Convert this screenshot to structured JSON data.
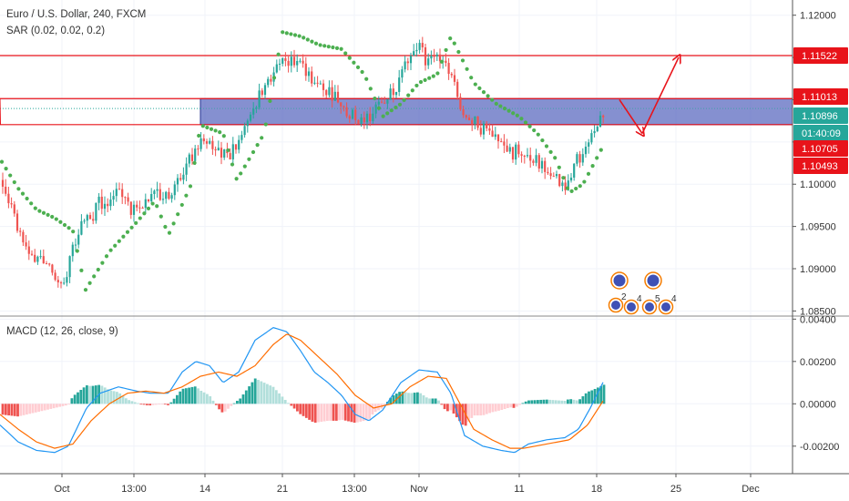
{
  "chart_data": {
    "type": "candlestick",
    "price_panel": {
      "title": "Euro / U.S. Dollar, 240, FXCM",
      "indicator": "SAR (0.02, 0.02, 0.2)",
      "yticks": [
        "1.12000",
        "1.11500",
        "1.11000",
        "1.10500",
        "1.10000",
        "1.09500",
        "1.09000",
        "1.08500"
      ],
      "ylim": [
        1.0845,
        1.1218
      ],
      "price_tags": [
        {
          "value": 1.11522,
          "label": "1.11522",
          "color": "#e8131a"
        },
        {
          "value": 1.11013,
          "label": "1.11013",
          "color": "#e8131a"
        },
        {
          "value": 1.10896,
          "label": "1.10896",
          "color": "#26a69a"
        },
        {
          "value": 1.1084,
          "label": "01:40:09",
          "color": "#26a69a"
        },
        {
          "value": 1.10705,
          "label": "1.10705",
          "color": "#e8131a"
        },
        {
          "value": 1.10493,
          "label": "1.10493",
          "color": "#e8131a"
        }
      ],
      "levels": [
        1.11522,
        1.11013,
        1.10705
      ],
      "zone": [
        1.10705,
        1.11013
      ],
      "colors": {
        "up": "#26a69a",
        "down": "#ef5350",
        "sar": "#4caf50",
        "level": "#e8131a",
        "zone": "#5c6bc0"
      },
      "close_path": [
        [
          0,
          1.1005
        ],
        [
          10,
          1.0975
        ],
        [
          20,
          1.0945
        ],
        [
          30,
          1.0925
        ],
        [
          40,
          1.0905
        ],
        [
          50,
          1.0915
        ],
        [
          60,
          1.0895
        ],
        [
          70,
          1.0885
        ],
        [
          80,
          1.0925
        ],
        [
          90,
          1.095
        ],
        [
          100,
          1.096
        ],
        [
          110,
          1.098
        ],
        [
          120,
          1.0975
        ],
        [
          130,
          1.099
        ],
        [
          140,
          1.0975
        ],
        [
          150,
          1.0965
        ],
        [
          160,
          1.0975
        ],
        [
          170,
          1.099
        ],
        [
          180,
          1.0985
        ],
        [
          190,
          1.0995
        ],
        [
          200,
          1.1015
        ],
        [
          210,
          1.103
        ],
        [
          220,
          1.1055
        ],
        [
          230,
          1.1045
        ],
        [
          240,
          1.104
        ],
        [
          250,
          1.1035
        ],
        [
          260,
          1.1045
        ],
        [
          270,
          1.107
        ],
        [
          280,
          1.1095
        ],
        [
          290,
          1.1115
        ],
        [
          300,
          1.1135
        ],
        [
          310,
          1.115
        ],
        [
          320,
          1.1145
        ],
        [
          330,
          1.114
        ],
        [
          340,
          1.1125
        ],
        [
          350,
          1.1115
        ],
        [
          360,
          1.111
        ],
        [
          370,
          1.11
        ],
        [
          380,
          1.109
        ],
        [
          390,
          1.1075
        ],
        [
          400,
          1.108
        ],
        [
          410,
          1.1085
        ],
        [
          420,
          1.1095
        ],
        [
          430,
          1.111
        ],
        [
          440,
          1.1125
        ],
        [
          450,
          1.115
        ],
        [
          460,
          1.116
        ],
        [
          470,
          1.1145
        ],
        [
          480,
          1.115
        ],
        [
          490,
          1.1135
        ],
        [
          500,
          1.111
        ],
        [
          510,
          1.108
        ],
        [
          520,
          1.1075
        ],
        [
          530,
          1.1065
        ],
        [
          540,
          1.106
        ],
        [
          550,
          1.105
        ],
        [
          560,
          1.1035
        ],
        [
          570,
          1.104
        ],
        [
          580,
          1.103
        ],
        [
          590,
          1.1025
        ],
        [
          600,
          1.1015
        ],
        [
          610,
          1.1005
        ],
        [
          620,
          1.1
        ],
        [
          630,
          1.102
        ],
        [
          640,
          1.104
        ],
        [
          650,
          1.106
        ],
        [
          660,
          1.1075
        ],
        [
          664,
          1.109
        ]
      ],
      "sar_path": [
        [
          0,
          1.103
        ],
        [
          20,
          1.0995
        ],
        [
          40,
          1.097
        ],
        [
          60,
          1.096
        ],
        [
          80,
          1.0945
        ],
        [
          94,
          1.0875
        ],
        [
          120,
          1.092
        ],
        [
          150,
          1.0955
        ],
        [
          170,
          1.098
        ],
        [
          185,
          1.094
        ],
        [
          210,
          1.1
        ],
        [
          220,
          1.107
        ],
        [
          245,
          1.106
        ],
        [
          260,
          1.1005
        ],
        [
          290,
          1.106
        ],
        [
          310,
          1.118
        ],
        [
          330,
          1.1175
        ],
        [
          350,
          1.1165
        ],
        [
          375,
          1.116
        ],
        [
          400,
          1.113
        ],
        [
          420,
          1.108
        ],
        [
          440,
          1.1095
        ],
        [
          460,
          1.112
        ],
        [
          480,
          1.113
        ],
        [
          495,
          1.1175
        ],
        [
          520,
          1.112
        ],
        [
          545,
          1.1095
        ],
        [
          570,
          1.108
        ],
        [
          590,
          1.106
        ],
        [
          610,
          1.103
        ],
        [
          625,
          1.099
        ],
        [
          640,
          1.1
        ],
        [
          662,
          1.1045
        ]
      ],
      "projection": [
        [
          680,
          1.11
        ],
        [
          705,
          1.106
        ],
        [
          745,
          1.115
        ]
      ]
    },
    "macd_panel": {
      "title": "MACD (12, 26, close, 9)",
      "yticks": [
        "0.00400",
        "0.00200",
        "0.00000",
        "-0.00200"
      ],
      "ylim": [
        -0.0033,
        0.0041
      ],
      "colors": {
        "macd": "#2196f3",
        "signal": "#ff6d00",
        "hist_up": "#26a69a",
        "hist_down": "#ef5350",
        "hist_up_light": "#b2dfdb",
        "hist_down_light": "#ffcdd2"
      },
      "macd_path": [
        [
          0,
          -0.001
        ],
        [
          20,
          -0.0018
        ],
        [
          40,
          -0.0022
        ],
        [
          60,
          -0.0023
        ],
        [
          75,
          -0.002
        ],
        [
          95,
          -0.0002
        ],
        [
          110,
          0.0005
        ],
        [
          130,
          0.0008
        ],
        [
          150,
          0.0006
        ],
        [
          165,
          0.0005
        ],
        [
          185,
          0.0005
        ],
        [
          200,
          0.0015
        ],
        [
          215,
          0.002
        ],
        [
          230,
          0.0018
        ],
        [
          245,
          0.001
        ],
        [
          262,
          0.0015
        ],
        [
          280,
          0.003
        ],
        [
          300,
          0.0036
        ],
        [
          315,
          0.0034
        ],
        [
          330,
          0.0025
        ],
        [
          345,
          0.0015
        ],
        [
          360,
          0.001
        ],
        [
          375,
          0.0004
        ],
        [
          390,
          -0.0005
        ],
        [
          405,
          -0.0008
        ],
        [
          420,
          -0.0003
        ],
        [
          440,
          0.001
        ],
        [
          460,
          0.0016
        ],
        [
          480,
          0.0015
        ],
        [
          495,
          0.0005
        ],
        [
          510,
          -0.0015
        ],
        [
          530,
          -0.002
        ],
        [
          550,
          -0.0022
        ],
        [
          565,
          -0.0023
        ],
        [
          580,
          -0.0019
        ],
        [
          600,
          -0.0017
        ],
        [
          620,
          -0.0016
        ],
        [
          635,
          -0.0012
        ],
        [
          648,
          -0.0002
        ],
        [
          663,
          0.0011
        ]
      ],
      "signal_path": [
        [
          0,
          -0.0005
        ],
        [
          20,
          -0.0012
        ],
        [
          40,
          -0.0018
        ],
        [
          60,
          -0.0021
        ],
        [
          80,
          -0.0019
        ],
        [
          100,
          -0.0008
        ],
        [
          120,
          0.0
        ],
        [
          140,
          0.0005
        ],
        [
          160,
          0.0006
        ],
        [
          180,
          0.0005
        ],
        [
          200,
          0.0008
        ],
        [
          220,
          0.0013
        ],
        [
          240,
          0.0015
        ],
        [
          260,
          0.0013
        ],
        [
          280,
          0.0018
        ],
        [
          300,
          0.0028
        ],
        [
          315,
          0.0033
        ],
        [
          330,
          0.003
        ],
        [
          350,
          0.0022
        ],
        [
          370,
          0.0014
        ],
        [
          390,
          0.0004
        ],
        [
          410,
          -0.0002
        ],
        [
          430,
          0.0
        ],
        [
          450,
          0.0008
        ],
        [
          470,
          0.0013
        ],
        [
          490,
          0.0012
        ],
        [
          505,
          0.0
        ],
        [
          520,
          -0.0012
        ],
        [
          540,
          -0.0017
        ],
        [
          560,
          -0.0021
        ],
        [
          575,
          -0.0021
        ],
        [
          600,
          -0.0019
        ],
        [
          625,
          -0.0017
        ],
        [
          645,
          -0.001
        ],
        [
          663,
          0.0002
        ]
      ]
    },
    "x_labels": [
      {
        "x": 68,
        "label": "Oct"
      },
      {
        "x": 147,
        "label": "13:00"
      },
      {
        "x": 225,
        "label": "14"
      },
      {
        "x": 310,
        "label": "21"
      },
      {
        "x": 389,
        "label": "13:00"
      },
      {
        "x": 460,
        "label": "Nov"
      },
      {
        "x": 570,
        "label": "11"
      },
      {
        "x": 655,
        "label": "18"
      },
      {
        "x": 742,
        "label": "25"
      },
      {
        "x": 824,
        "label": "Dec"
      }
    ],
    "event_markers": {
      "top_row": [
        "",
        ""
      ],
      "bottom_row": [
        "2",
        "4",
        "5",
        "4"
      ]
    }
  }
}
